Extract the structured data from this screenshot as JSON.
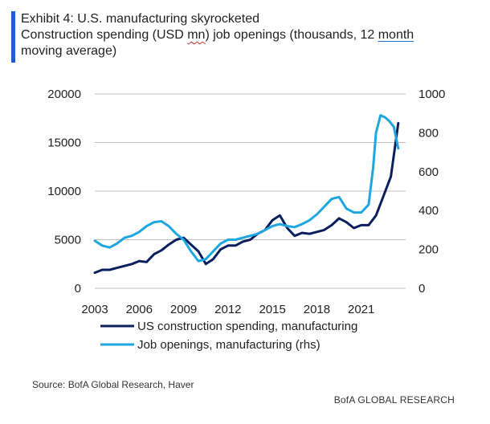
{
  "title": {
    "line1": "Exhibit 4: U.S. manufacturing skyrocketed",
    "line2_a": "Construction spending (USD ",
    "line2_b": "mn",
    "line2_c": ") job openings (thousands, 12 ",
    "line2_d": "month",
    "line3": "moving average)"
  },
  "source": "Source: BofA Global Research, Haver",
  "brand": "BofA GLOBAL RESEARCH",
  "colors": {
    "accent": "#1a5fd6",
    "construction": "#0b1f5e",
    "job_openings": "#1ea6e0",
    "grid": "#bfbfbf"
  },
  "chart_data": {
    "type": "line",
    "x_ticks": [
      "2003",
      "2006",
      "2009",
      "2012",
      "2015",
      "2018",
      "2021"
    ],
    "xlim": [
      2003,
      2024
    ],
    "y_left": {
      "ticks": [
        "0",
        "5000",
        "10000",
        "15000",
        "20000"
      ],
      "lim": [
        0,
        20000
      ]
    },
    "y_right": {
      "ticks": [
        "0",
        "200",
        "400",
        "600",
        "800",
        "1000"
      ],
      "lim": [
        0,
        1000
      ]
    },
    "grid": "horizontal",
    "legend": "bottom",
    "series": [
      {
        "name": "US construction spending, manufacturing",
        "axis": "left",
        "x": [
          2003.0,
          2003.5,
          2004.0,
          2004.5,
          2005.0,
          2005.5,
          2006.0,
          2006.5,
          2007.0,
          2007.5,
          2008.0,
          2008.5,
          2009.0,
          2009.5,
          2010.0,
          2010.5,
          2011.0,
          2011.5,
          2012.0,
          2012.5,
          2013.0,
          2013.5,
          2014.0,
          2014.5,
          2015.0,
          2015.5,
          2016.0,
          2016.5,
          2017.0,
          2017.5,
          2018.0,
          2018.5,
          2019.0,
          2019.5,
          2020.0,
          2020.5,
          2021.0,
          2021.5,
          2022.0,
          2022.5,
          2023.0,
          2023.5
        ],
        "values": [
          1600,
          1900,
          1900,
          2100,
          2300,
          2500,
          2800,
          2700,
          3500,
          3900,
          4500,
          5000,
          5200,
          4500,
          3800,
          2500,
          3000,
          4000,
          4400,
          4400,
          4800,
          5000,
          5600,
          6000,
          7000,
          7500,
          6200,
          5400,
          5700,
          5600,
          5800,
          6000,
          6500,
          7200,
          6800,
          6200,
          6500,
          6500,
          7500,
          9500,
          11500,
          17000
        ]
      },
      {
        "name": "Job openings, manufacturing (rhs)",
        "axis": "right",
        "x": [
          2003.0,
          2003.5,
          2004.0,
          2004.5,
          2005.0,
          2005.5,
          2006.0,
          2006.5,
          2007.0,
          2007.5,
          2008.0,
          2008.5,
          2009.0,
          2009.5,
          2010.0,
          2010.5,
          2011.0,
          2011.5,
          2012.0,
          2012.5,
          2013.0,
          2013.5,
          2014.0,
          2014.5,
          2015.0,
          2015.5,
          2016.0,
          2016.5,
          2017.0,
          2017.5,
          2018.0,
          2018.5,
          2019.0,
          2019.5,
          2020.0,
          2020.5,
          2021.0,
          2021.5,
          2021.8,
          2022.0,
          2022.3,
          2022.6,
          2022.9,
          2023.2,
          2023.5
        ],
        "values": [
          245,
          220,
          210,
          230,
          260,
          270,
          290,
          320,
          340,
          345,
          320,
          280,
          250,
          190,
          140,
          150,
          190,
          230,
          250,
          250,
          260,
          270,
          280,
          300,
          320,
          330,
          320,
          315,
          330,
          350,
          380,
          420,
          460,
          470,
          410,
          390,
          390,
          430,
          620,
          800,
          890,
          880,
          860,
          830,
          720
        ]
      }
    ]
  }
}
